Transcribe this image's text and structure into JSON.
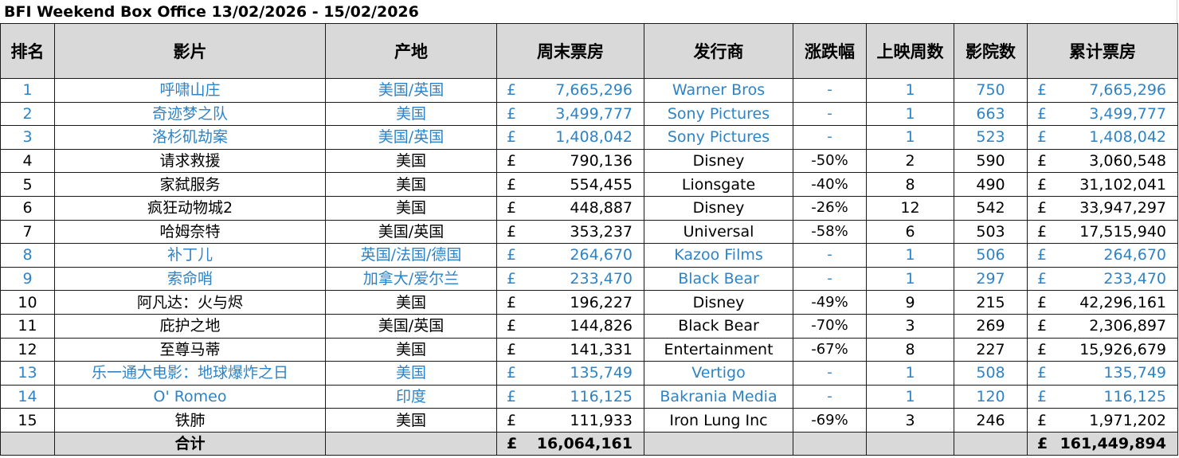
{
  "title": "BFI Weekend Box Office 13/02/2026 - 15/02/2026",
  "colors": {
    "new_release": "#2f83c4",
    "header_bg": "#d9d9d9"
  },
  "headers": [
    "排名",
    "影片",
    "产地",
    "周末票房",
    "发行商",
    "涨跌幅",
    "上映周数",
    "影院数",
    "累计票房"
  ],
  "currency": "£",
  "rows": [
    {
      "rank": "1",
      "film": "呼啸山庄",
      "origin": "美国/英国",
      "weekend": "7,665,296",
      "distributor": "Warner Bros",
      "change": "-",
      "weeks": "1",
      "cinemas": "750",
      "total": "7,665,296",
      "new": true
    },
    {
      "rank": "2",
      "film": "奇迹梦之队",
      "origin": "美国",
      "weekend": "3,499,777",
      "distributor": "Sony Pictures",
      "change": "-",
      "weeks": "1",
      "cinemas": "663",
      "total": "3,499,777",
      "new": true
    },
    {
      "rank": "3",
      "film": "洛杉矶劫案",
      "origin": "美国/英国",
      "weekend": "1,408,042",
      "distributor": "Sony Pictures",
      "change": "-",
      "weeks": "1",
      "cinemas": "523",
      "total": "1,408,042",
      "new": true
    },
    {
      "rank": "4",
      "film": "请求救援",
      "origin": "美国",
      "weekend": "790,136",
      "distributor": "Disney",
      "change": "-50%",
      "weeks": "2",
      "cinemas": "590",
      "total": "3,060,548",
      "new": false
    },
    {
      "rank": "5",
      "film": "家弑服务",
      "origin": "美国",
      "weekend": "554,455",
      "distributor": "Lionsgate",
      "change": "-40%",
      "weeks": "8",
      "cinemas": "490",
      "total": "31,102,041",
      "new": false
    },
    {
      "rank": "6",
      "film": "疯狂动物城2",
      "origin": "美国",
      "weekend": "448,887",
      "distributor": "Disney",
      "change": "-26%",
      "weeks": "12",
      "cinemas": "542",
      "total": "33,947,297",
      "new": false
    },
    {
      "rank": "7",
      "film": "哈姆奈特",
      "origin": "美国/英国",
      "weekend": "353,237",
      "distributor": "Universal",
      "change": "-58%",
      "weeks": "6",
      "cinemas": "503",
      "total": "17,515,940",
      "new": false
    },
    {
      "rank": "8",
      "film": "补丁儿",
      "origin": "英国/法国/德国",
      "weekend": "264,670",
      "distributor": "Kazoo Films",
      "change": "-",
      "weeks": "1",
      "cinemas": "506",
      "total": "264,670",
      "new": true
    },
    {
      "rank": "9",
      "film": "索命哨",
      "origin": "加拿大/爱尔兰",
      "weekend": "233,470",
      "distributor": "Black Bear",
      "change": "-",
      "weeks": "1",
      "cinemas": "297",
      "total": "233,470",
      "new": true
    },
    {
      "rank": "10",
      "film": "阿凡达：火与烬",
      "origin": "美国",
      "weekend": "196,227",
      "distributor": "Disney",
      "change": "-49%",
      "weeks": "9",
      "cinemas": "215",
      "total": "42,296,161",
      "new": false
    },
    {
      "rank": "11",
      "film": "庇护之地",
      "origin": "美国/英国",
      "weekend": "144,826",
      "distributor": "Black Bear",
      "change": "-70%",
      "weeks": "3",
      "cinemas": "269",
      "total": "2,306,897",
      "new": false
    },
    {
      "rank": "12",
      "film": "至尊马蒂",
      "origin": "美国",
      "weekend": "141,331",
      "distributor": "Entertainment",
      "change": "-67%",
      "weeks": "8",
      "cinemas": "227",
      "total": "15,926,679",
      "new": false
    },
    {
      "rank": "13",
      "film": "乐一通大电影：地球爆炸之日",
      "origin": "美国",
      "weekend": "135,749",
      "distributor": "Vertigo",
      "change": "-",
      "weeks": "1",
      "cinemas": "508",
      "total": "135,749",
      "new": true
    },
    {
      "rank": "14",
      "film": "O' Romeo",
      "origin": "印度",
      "weekend": "116,125",
      "distributor": "Bakrania Media",
      "change": "-",
      "weeks": "1",
      "cinemas": "120",
      "total": "116,125",
      "new": true
    },
    {
      "rank": "15",
      "film": "铁肺",
      "origin": "美国",
      "weekend": "111,933",
      "distributor": "Iron Lung Inc",
      "change": "-69%",
      "weeks": "3",
      "cinemas": "246",
      "total": "1,971,202",
      "new": false
    }
  ],
  "footer": {
    "label": "合计",
    "weekend_total": "16,064,161",
    "cumulative_total": "161,449,894"
  }
}
